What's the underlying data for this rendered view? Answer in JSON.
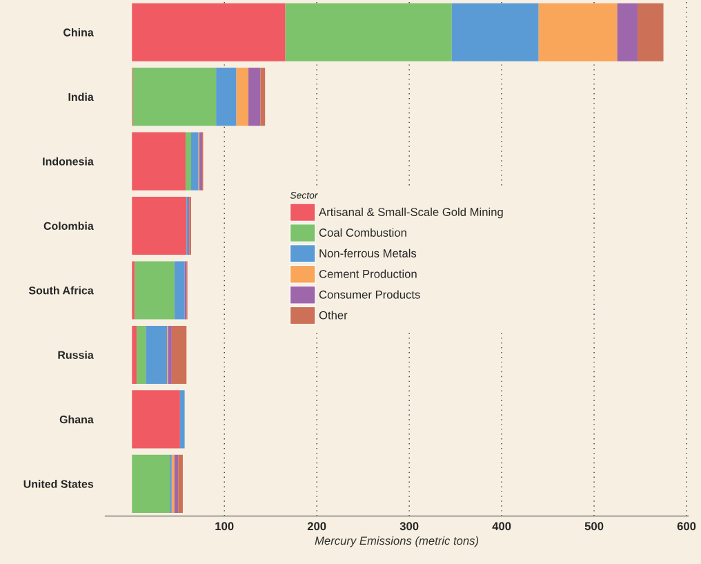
{
  "chart_data": {
    "type": "bar",
    "orientation": "horizontal",
    "stacked": true,
    "categories": [
      "China",
      "India",
      "Indonesia",
      "Colombia",
      "South Africa",
      "Russia",
      "Ghana",
      "United States"
    ],
    "series": [
      {
        "name": "Artisanal & Small-Scale Gold Mining",
        "color": "#f05a63",
        "values": [
          166,
          1,
          58,
          59,
          3,
          5,
          52,
          0
        ]
      },
      {
        "name": "Coal Combustion",
        "color": "#7dc36b",
        "values": [
          180,
          90,
          6,
          0,
          43,
          10,
          0,
          41
        ]
      },
      {
        "name": "Non-ferrous Metals",
        "color": "#5b9bd5",
        "values": [
          94,
          22,
          8,
          2,
          11,
          23,
          5,
          2
        ]
      },
      {
        "name": "Cement Production",
        "color": "#f9a65a",
        "values": [
          85,
          13,
          1,
          0,
          0,
          1,
          0,
          3
        ]
      },
      {
        "name": "Consumer Products",
        "color": "#9e67ab",
        "values": [
          22,
          13,
          3,
          1,
          2,
          4,
          0,
          4
        ]
      },
      {
        "name": "Other",
        "color": "#cd7058",
        "values": [
          28,
          5,
          1,
          2,
          1,
          16,
          0,
          5
        ]
      }
    ],
    "xlabel": "Mercury Emissions (metric tons)",
    "legend_title": "Sector",
    "xlim": [
      -29,
      602
    ],
    "xticks": [
      100,
      200,
      300,
      400,
      500,
      600
    ],
    "grid": "x",
    "legend": "center"
  }
}
